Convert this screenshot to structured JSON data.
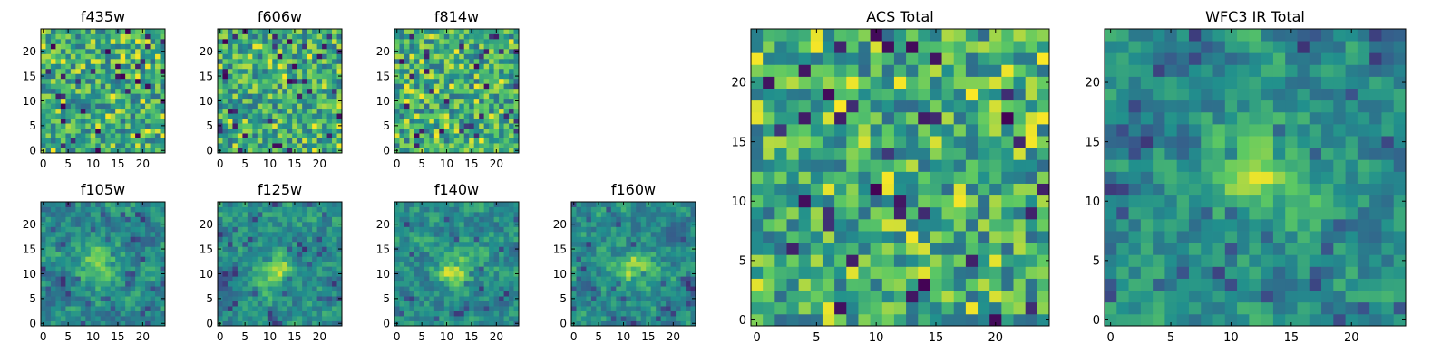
{
  "figure": {
    "background": "#ffffff",
    "colormap": "viridis",
    "colormap_stops": [
      "#440154",
      "#3b528b",
      "#21908d",
      "#5dc963",
      "#fde725"
    ]
  },
  "chart_data": [
    {
      "type": "heatmap",
      "title": "f435w",
      "grid_size": [
        25,
        25
      ],
      "xlim": [
        -0.5,
        24.5
      ],
      "ylim": [
        -0.5,
        24.5
      ],
      "xticks": [
        0,
        5,
        10,
        15,
        20
      ],
      "yticks": [
        0,
        5,
        10,
        15,
        20
      ],
      "xlabel": "",
      "ylabel": "",
      "grid": false,
      "structure": "noise",
      "seed": 11
    },
    {
      "type": "heatmap",
      "title": "f606w",
      "grid_size": [
        25,
        25
      ],
      "xlim": [
        -0.5,
        24.5
      ],
      "ylim": [
        -0.5,
        24.5
      ],
      "xticks": [
        0,
        5,
        10,
        15,
        20
      ],
      "yticks": [
        0,
        5,
        10,
        15,
        20
      ],
      "xlabel": "",
      "ylabel": "",
      "grid": false,
      "structure": "noise",
      "seed": 23
    },
    {
      "type": "heatmap",
      "title": "f814w",
      "grid_size": [
        25,
        25
      ],
      "xlim": [
        -0.5,
        24.5
      ],
      "ylim": [
        -0.5,
        24.5
      ],
      "xticks": [
        0,
        5,
        10,
        15,
        20
      ],
      "yticks": [
        0,
        5,
        10,
        15,
        20
      ],
      "xlabel": "",
      "ylabel": "",
      "grid": false,
      "structure": "noise",
      "seed": 37
    },
    {
      "type": "heatmap",
      "title": "f105w",
      "grid_size": [
        25,
        25
      ],
      "xlim": [
        -0.5,
        24.5
      ],
      "ylim": [
        -0.5,
        24.5
      ],
      "xticks": [
        0,
        5,
        10,
        15,
        20
      ],
      "yticks": [
        0,
        5,
        10,
        15,
        20
      ],
      "xlabel": "",
      "ylabel": "",
      "grid": false,
      "structure": "central source",
      "source_center": [
        12,
        12
      ],
      "seed": 41
    },
    {
      "type": "heatmap",
      "title": "f125w",
      "grid_size": [
        25,
        25
      ],
      "xlim": [
        -0.5,
        24.5
      ],
      "ylim": [
        -0.5,
        24.5
      ],
      "xticks": [
        0,
        5,
        10,
        15,
        20
      ],
      "yticks": [
        0,
        5,
        10,
        15,
        20
      ],
      "xlabel": "",
      "ylabel": "",
      "grid": false,
      "structure": "central source",
      "source_center": [
        11,
        11
      ],
      "seed": 53
    },
    {
      "type": "heatmap",
      "title": "f140w",
      "grid_size": [
        25,
        25
      ],
      "xlim": [
        -0.5,
        24.5
      ],
      "ylim": [
        -0.5,
        24.5
      ],
      "xticks": [
        0,
        5,
        10,
        15,
        20
      ],
      "yticks": [
        0,
        5,
        10,
        15,
        20
      ],
      "xlabel": "",
      "ylabel": "",
      "grid": false,
      "structure": "central source",
      "source_center": [
        12,
        11
      ],
      "seed": 67
    },
    {
      "type": "heatmap",
      "title": "f160w",
      "grid_size": [
        25,
        25
      ],
      "xlim": [
        -0.5,
        24.5
      ],
      "ylim": [
        -0.5,
        24.5
      ],
      "xticks": [
        0,
        5,
        10,
        15,
        20
      ],
      "yticks": [
        0,
        5,
        10,
        15,
        20
      ],
      "xlabel": "",
      "ylabel": "",
      "grid": false,
      "structure": "central source",
      "source_center": [
        12,
        11
      ],
      "seed": 79
    },
    {
      "type": "heatmap",
      "title": "ACS Total",
      "grid_size": [
        25,
        25
      ],
      "xlim": [
        -0.5,
        24.5
      ],
      "ylim": [
        -0.5,
        24.5
      ],
      "xticks": [
        0,
        5,
        10,
        15,
        20
      ],
      "yticks": [
        0,
        5,
        10,
        15,
        20
      ],
      "xlabel": "",
      "ylabel": "",
      "grid": false,
      "structure": "noise",
      "seed": 97
    },
    {
      "type": "heatmap",
      "title": "WFC3 IR Total",
      "grid_size": [
        25,
        25
      ],
      "xlim": [
        -0.5,
        24.5
      ],
      "ylim": [
        -0.5,
        24.5
      ],
      "xticks": [
        0,
        5,
        10,
        15,
        20
      ],
      "yticks": [
        0,
        5,
        10,
        15,
        20
      ],
      "xlabel": "",
      "ylabel": "",
      "grid": false,
      "structure": "central source",
      "source_center": [
        12,
        12
      ],
      "seed": 101
    }
  ]
}
